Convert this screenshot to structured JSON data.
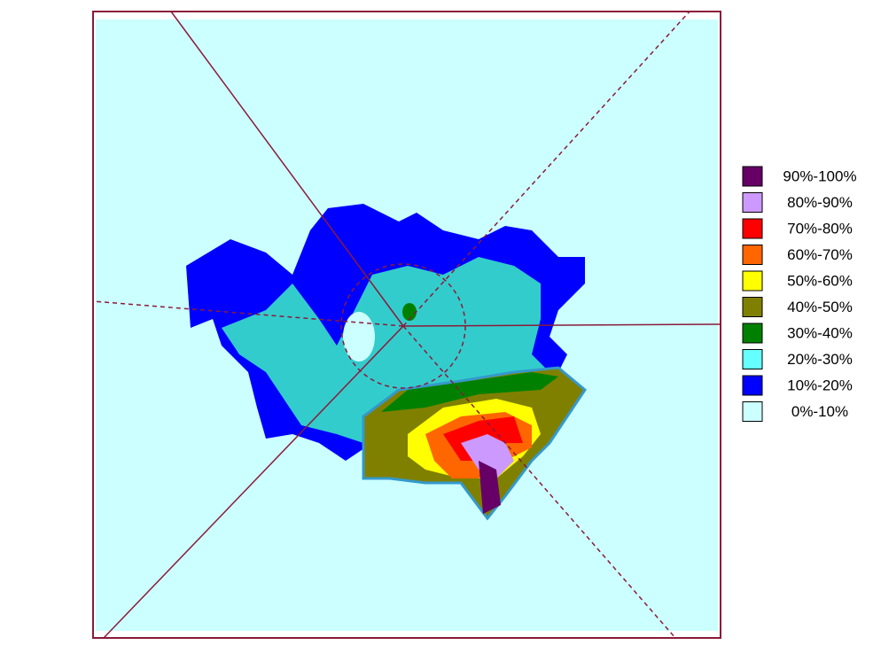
{
  "chart_data": {
    "type": "contour",
    "series": [
      {
        "name": "90%-100%",
        "color": "#660066"
      },
      {
        "name": "80%-90%",
        "color": "#cc99ff"
      },
      {
        "name": "70%-80%",
        "color": "#ff0000"
      },
      {
        "name": "60%-70%",
        "color": "#ff6600"
      },
      {
        "name": "50%-60%",
        "color": "#ffff00"
      },
      {
        "name": "40%-50%",
        "color": "#808000"
      },
      {
        "name": "30%-40%",
        "color": "#008000"
      },
      {
        "name": "20%-30%",
        "color": "#66ffff"
      },
      {
        "name": "10%-20%",
        "color": "#0000ff"
      },
      {
        "name": "0%-10%",
        "color": "#ccffff"
      }
    ]
  }
}
